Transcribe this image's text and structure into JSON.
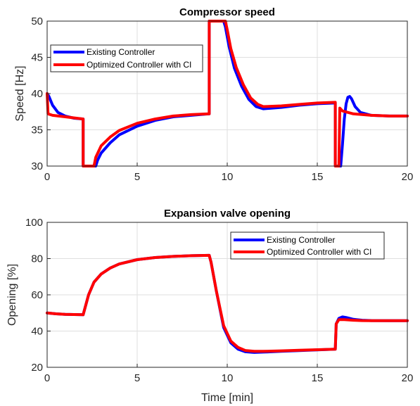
{
  "chart_data": [
    {
      "type": "line",
      "title": "Compressor speed",
      "xlabel": "",
      "ylabel": "Speed [Hz]",
      "xlim": [
        0,
        20
      ],
      "ylim": [
        30,
        50
      ],
      "xticks": [
        "0",
        "5",
        "10",
        "15",
        "20"
      ],
      "yticks": [
        "30",
        "35",
        "40",
        "45",
        "50"
      ],
      "grid": true,
      "legend": "top-left",
      "series": [
        {
          "name": "Existing Controller",
          "color": "#0000ff",
          "points": [
            [
              0,
              40
            ],
            [
              0.1,
              39.6
            ],
            [
              0.3,
              38.4
            ],
            [
              0.6,
              37.4
            ],
            [
              1.0,
              36.9
            ],
            [
              1.5,
              36.6
            ],
            [
              2.0,
              36.5
            ],
            [
              2.0,
              30
            ],
            [
              2.7,
              30
            ],
            [
              2.8,
              30.8
            ],
            [
              3.0,
              31.8
            ],
            [
              3.5,
              33.2
            ],
            [
              4.0,
              34.3
            ],
            [
              5.0,
              35.5
            ],
            [
              6.0,
              36.3
            ],
            [
              7.0,
              36.8
            ],
            [
              8.0,
              37.0
            ],
            [
              9.0,
              37.2
            ],
            [
              9.0,
              50
            ],
            [
              9.8,
              50
            ],
            [
              9.9,
              49.2
            ],
            [
              10.1,
              46.5
            ],
            [
              10.4,
              43.5
            ],
            [
              10.8,
              41.0
            ],
            [
              11.2,
              39.2
            ],
            [
              11.6,
              38.2
            ],
            [
              12.0,
              37.9
            ],
            [
              13.0,
              38.1
            ],
            [
              14.0,
              38.4
            ],
            [
              15.0,
              38.6
            ],
            [
              16.0,
              38.7
            ],
            [
              16.0,
              30
            ],
            [
              16.3,
              30
            ],
            [
              16.4,
              33.0
            ],
            [
              16.5,
              36.5
            ],
            [
              16.6,
              38.6
            ],
            [
              16.7,
              39.5
            ],
            [
              16.8,
              39.6
            ],
            [
              16.9,
              39.3
            ],
            [
              17.1,
              38.2
            ],
            [
              17.4,
              37.4
            ],
            [
              18.0,
              37.0
            ],
            [
              19.0,
              36.9
            ],
            [
              20.0,
              36.9
            ]
          ]
        },
        {
          "name": "Optimized Controller with CI",
          "color": "#ff0000",
          "points": [
            [
              0,
              40
            ],
            [
              0.05,
              37.2
            ],
            [
              0.3,
              37.0
            ],
            [
              1.0,
              36.8
            ],
            [
              2.0,
              36.5
            ],
            [
              2.0,
              30
            ],
            [
              2.6,
              30
            ],
            [
              2.7,
              31.2
            ],
            [
              3.0,
              32.8
            ],
            [
              3.5,
              34.0
            ],
            [
              4.0,
              34.9
            ],
            [
              5.0,
              35.9
            ],
            [
              6.0,
              36.5
            ],
            [
              7.0,
              36.9
            ],
            [
              8.0,
              37.1
            ],
            [
              9.0,
              37.2
            ],
            [
              9.0,
              50
            ],
            [
              9.9,
              50
            ],
            [
              10.0,
              48.8
            ],
            [
              10.2,
              46.2
            ],
            [
              10.5,
              43.6
            ],
            [
              10.9,
              41.2
            ],
            [
              11.3,
              39.4
            ],
            [
              11.7,
              38.5
            ],
            [
              12.0,
              38.2
            ],
            [
              13.0,
              38.3
            ],
            [
              14.0,
              38.5
            ],
            [
              15.0,
              38.7
            ],
            [
              16.0,
              38.8
            ],
            [
              16.0,
              30
            ],
            [
              16.2,
              30
            ],
            [
              16.25,
              38.0
            ],
            [
              16.4,
              37.6
            ],
            [
              17.0,
              37.2
            ],
            [
              18.0,
              37.0
            ],
            [
              19.0,
              36.9
            ],
            [
              20.0,
              36.9
            ]
          ]
        }
      ]
    },
    {
      "type": "line",
      "title": "Expansion valve opening",
      "xlabel": "Time [min]",
      "ylabel": "Opening [%]",
      "xlim": [
        0,
        20
      ],
      "ylim": [
        20,
        100
      ],
      "xticks": [
        "0",
        "5",
        "10",
        "15",
        "20"
      ],
      "yticks": [
        "20",
        "40",
        "60",
        "80",
        "100"
      ],
      "grid": true,
      "legend": "top-right",
      "series": [
        {
          "name": "Existing Controller",
          "color": "#0000ff",
          "points": [
            [
              0,
              50
            ],
            [
              0.5,
              49.5
            ],
            [
              1.0,
              49.2
            ],
            [
              2.0,
              49.0
            ],
            [
              2.3,
              60
            ],
            [
              2.6,
              67
            ],
            [
              3.0,
              71.5
            ],
            [
              3.5,
              74.8
            ],
            [
              4.0,
              77
            ],
            [
              5.0,
              79.4
            ],
            [
              6.0,
              80.6
            ],
            [
              7.0,
              81.2
            ],
            [
              8.0,
              81.6
            ],
            [
              9.0,
              81.8
            ],
            [
              9.1,
              78
            ],
            [
              9.4,
              62
            ],
            [
              9.8,
              42
            ],
            [
              10.2,
              33.5
            ],
            [
              10.6,
              30.0
            ],
            [
              11.0,
              28.6
            ],
            [
              11.5,
              28.2
            ],
            [
              12.0,
              28.4
            ],
            [
              13.0,
              28.8
            ],
            [
              14.0,
              29.2
            ],
            [
              15.0,
              29.6
            ],
            [
              16.0,
              30.0
            ],
            [
              16.05,
              44
            ],
            [
              16.2,
              47
            ],
            [
              16.4,
              47.8
            ],
            [
              16.6,
              47.5
            ],
            [
              17.0,
              46.5
            ],
            [
              17.5,
              46.0
            ],
            [
              18.0,
              45.8
            ],
            [
              19.0,
              45.7
            ],
            [
              20.0,
              45.7
            ]
          ]
        },
        {
          "name": "Optimized Controller with CI",
          "color": "#ff0000",
          "points": [
            [
              0,
              50
            ],
            [
              0.5,
              49.5
            ],
            [
              1.0,
              49.2
            ],
            [
              2.0,
              49.0
            ],
            [
              2.3,
              60
            ],
            [
              2.6,
              67
            ],
            [
              3.0,
              71.5
            ],
            [
              3.5,
              74.8
            ],
            [
              4.0,
              77
            ],
            [
              5.0,
              79.4
            ],
            [
              6.0,
              80.6
            ],
            [
              7.0,
              81.2
            ],
            [
              8.0,
              81.6
            ],
            [
              9.0,
              81.8
            ],
            [
              9.1,
              78
            ],
            [
              9.4,
              62
            ],
            [
              9.8,
              43
            ],
            [
              10.2,
              34.5
            ],
            [
              10.6,
              31.0
            ],
            [
              11.0,
              29.3
            ],
            [
              11.5,
              28.8
            ],
            [
              12.0,
              28.8
            ],
            [
              13.0,
              29.1
            ],
            [
              14.0,
              29.4
            ],
            [
              15.0,
              29.7
            ],
            [
              16.0,
              30.0
            ],
            [
              16.05,
              44
            ],
            [
              16.2,
              46.3
            ],
            [
              16.5,
              46.3
            ],
            [
              17.0,
              46.0
            ],
            [
              17.5,
              45.8
            ],
            [
              18.0,
              45.7
            ],
            [
              19.0,
              45.7
            ],
            [
              20.0,
              45.7
            ]
          ]
        }
      ]
    }
  ]
}
